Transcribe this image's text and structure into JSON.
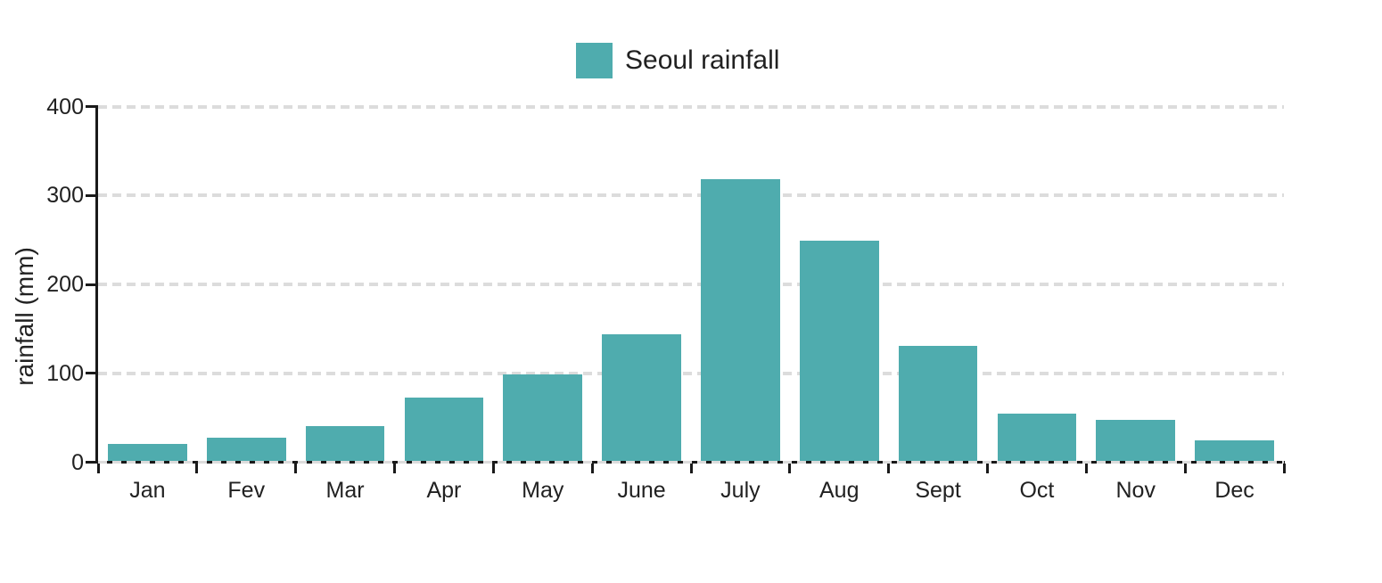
{
  "chart": {
    "legend": {
      "label": "Seoul rainfall",
      "position": "top-center"
    },
    "y_axis_title": "rainfall (mm)"
  },
  "chart_data": {
    "type": "bar",
    "title": "Seoul rainfall",
    "categories": [
      "Jan",
      "Fev",
      "Mar",
      "Apr",
      "May",
      "June",
      "July",
      "Aug",
      "Sept",
      "Oct",
      "Nov",
      "Dec"
    ],
    "values": [
      20,
      27,
      40,
      72,
      98,
      143,
      318,
      249,
      130,
      54,
      47,
      24
    ],
    "series": [
      {
        "name": "Seoul rainfall",
        "values": [
          20,
          27,
          40,
          72,
          98,
          143,
          318,
          249,
          130,
          54,
          47,
          24
        ]
      }
    ],
    "xlabel": "",
    "ylabel": "rainfall (mm)",
    "ylim": [
      0,
      400
    ],
    "yticks": [
      0,
      100,
      200,
      300,
      400
    ],
    "grid": "horizontal dashed",
    "legend_position": "top-center"
  },
  "colors": {
    "bar": "#4FACAE",
    "grid": "#DCDCDC",
    "axis": "#1A1A1A",
    "text": "#212121",
    "background": "#FFFFFF"
  }
}
